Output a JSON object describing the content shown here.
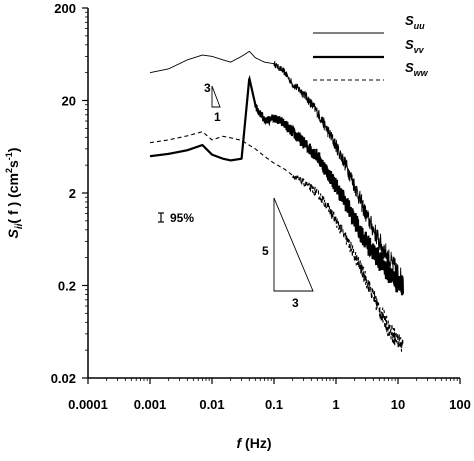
{
  "chart_data": {
    "type": "line",
    "x_scale": "log",
    "y_scale": "log",
    "xlim": [
      0.0001,
      100
    ],
    "ylim": [
      0.02,
      200
    ],
    "x_ticks": [
      "0.0001",
      "0.001",
      "0.01",
      "0.1",
      "1",
      "10",
      "100"
    ],
    "y_ticks": [
      "0.02",
      "0.2",
      "2",
      "20",
      "200"
    ],
    "xlabel_parts": {
      "italic": "f",
      "rest": " (Hz)"
    },
    "ylabel_parts": {
      "prefix": "S",
      "sub": "ii",
      "mid": "( f )  (cm",
      "sup1": "2",
      "mid2": "s",
      "sup2": "-1",
      "end": ")"
    },
    "legend_position": "top-right",
    "series": [
      {
        "name": "S_uu",
        "symbol": "S",
        "sub": "uu",
        "style": "thin-solid",
        "x": [
          0.001,
          0.002,
          0.004,
          0.007,
          0.01,
          0.015,
          0.02,
          0.03,
          0.04,
          0.05,
          0.07,
          0.1,
          0.15,
          0.2,
          0.3,
          0.5,
          0.7,
          1,
          1.5,
          2,
          3,
          5,
          7,
          10,
          12
        ],
        "y": [
          40,
          44,
          55,
          62,
          60,
          55,
          52,
          60,
          68,
          58,
          52,
          50,
          40,
          30,
          24,
          15,
          10,
          6.5,
          3.8,
          2.4,
          1.2,
          0.6,
          0.4,
          0.27,
          0.22
        ],
        "noise_from": 0.1
      },
      {
        "name": "S_vv",
        "symbol": "S",
        "sub": "vv",
        "style": "thick-solid",
        "x": [
          0.001,
          0.002,
          0.004,
          0.007,
          0.01,
          0.015,
          0.02,
          0.03,
          0.04,
          0.05,
          0.07,
          0.1,
          0.15,
          0.2,
          0.3,
          0.5,
          0.7,
          1,
          1.5,
          2,
          3,
          5,
          7,
          10,
          12
        ],
        "y": [
          5.0,
          5.3,
          5.8,
          6.6,
          5.2,
          4.7,
          4.5,
          4.7,
          35,
          18,
          12,
          13,
          11,
          9,
          7,
          5,
          3.5,
          2.4,
          1.5,
          1.0,
          0.6,
          0.38,
          0.28,
          0.21,
          0.2
        ],
        "noise_from": 0.05
      },
      {
        "name": "S_ww",
        "symbol": "S",
        "sub": "ww",
        "style": "dashed",
        "x": [
          0.001,
          0.002,
          0.004,
          0.007,
          0.01,
          0.015,
          0.02,
          0.03,
          0.05,
          0.07,
          0.1,
          0.15,
          0.2,
          0.3,
          0.5,
          0.7,
          1,
          1.5,
          2,
          3,
          5,
          7,
          10,
          12
        ],
        "y": [
          7.0,
          7.5,
          8.3,
          9.2,
          7.5,
          8.2,
          7.9,
          7.4,
          6.0,
          5.0,
          4.2,
          3.6,
          3.1,
          2.6,
          2.0,
          1.5,
          1.0,
          0.62,
          0.42,
          0.24,
          0.11,
          0.07,
          0.05,
          0.045
        ],
        "noise_from": 0.2
      }
    ],
    "annotations": {
      "slope_small": {
        "rise": "3",
        "run": "1"
      },
      "slope_large": {
        "rise": "5",
        "run": "3"
      },
      "confidence_label": "95%"
    }
  }
}
